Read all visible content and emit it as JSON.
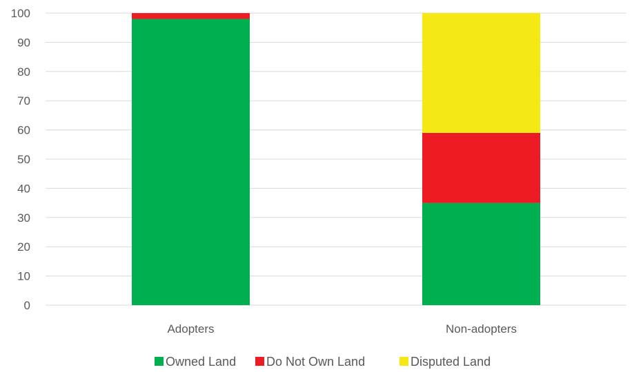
{
  "chart_data": {
    "type": "bar",
    "stacked": true,
    "categories": [
      "Adopters",
      "Non-adopters"
    ],
    "series": [
      {
        "name": "Owned Land",
        "values": [
          98,
          35
        ],
        "color": "#00b050"
      },
      {
        "name": "Do Not Own Land",
        "values": [
          2,
          24
        ],
        "color": "#ed1c24"
      },
      {
        "name": "Disputed Land",
        "values": [
          0,
          41
        ],
        "color": "#f5e814"
      }
    ],
    "ylim": [
      0,
      100
    ],
    "yticks": [
      0,
      10,
      20,
      30,
      40,
      50,
      60,
      70,
      80,
      90,
      100
    ],
    "grid": true,
    "legend_position": "bottom"
  }
}
